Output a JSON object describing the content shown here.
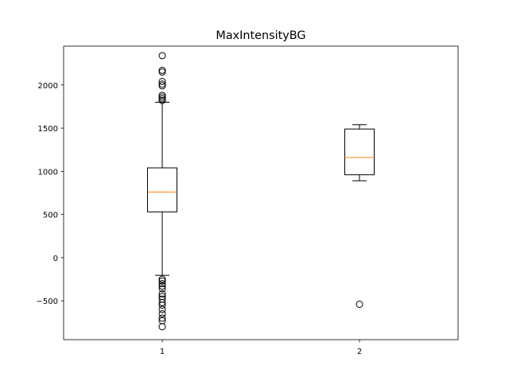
{
  "chart_data": {
    "type": "box",
    "title": "MaxIntensityBG",
    "xlabel": "",
    "ylabel": "",
    "categories": [
      "1",
      "2"
    ],
    "ylim": [
      -950,
      2450
    ],
    "yticks": [
      -500,
      0,
      500,
      1000,
      1500,
      2000
    ],
    "ytick_labels": [
      "−500",
      "0",
      "500",
      "1000",
      "1500",
      "2000"
    ],
    "grid": false,
    "colors": {
      "box": "#000000",
      "median": "#ff7f0e",
      "flier": "#000000"
    },
    "boxes": [
      {
        "category": "1",
        "whisker_low": -205,
        "q1": 530,
        "median": 760,
        "q3": 1040,
        "whisker_high": 1800,
        "outliers": [
          2340,
          2170,
          2150,
          2040,
          2010,
          1990,
          1880,
          1860,
          1840,
          1820,
          -250,
          -270,
          -300,
          -330,
          -360,
          -420,
          -450,
          -480,
          -520,
          -550,
          -600,
          -650,
          -700,
          -730,
          -800
        ]
      },
      {
        "category": "2",
        "whisker_low": 890,
        "q1": 960,
        "median": 1160,
        "q3": 1490,
        "whisker_high": 1540,
        "outliers": [
          -540
        ]
      }
    ]
  }
}
